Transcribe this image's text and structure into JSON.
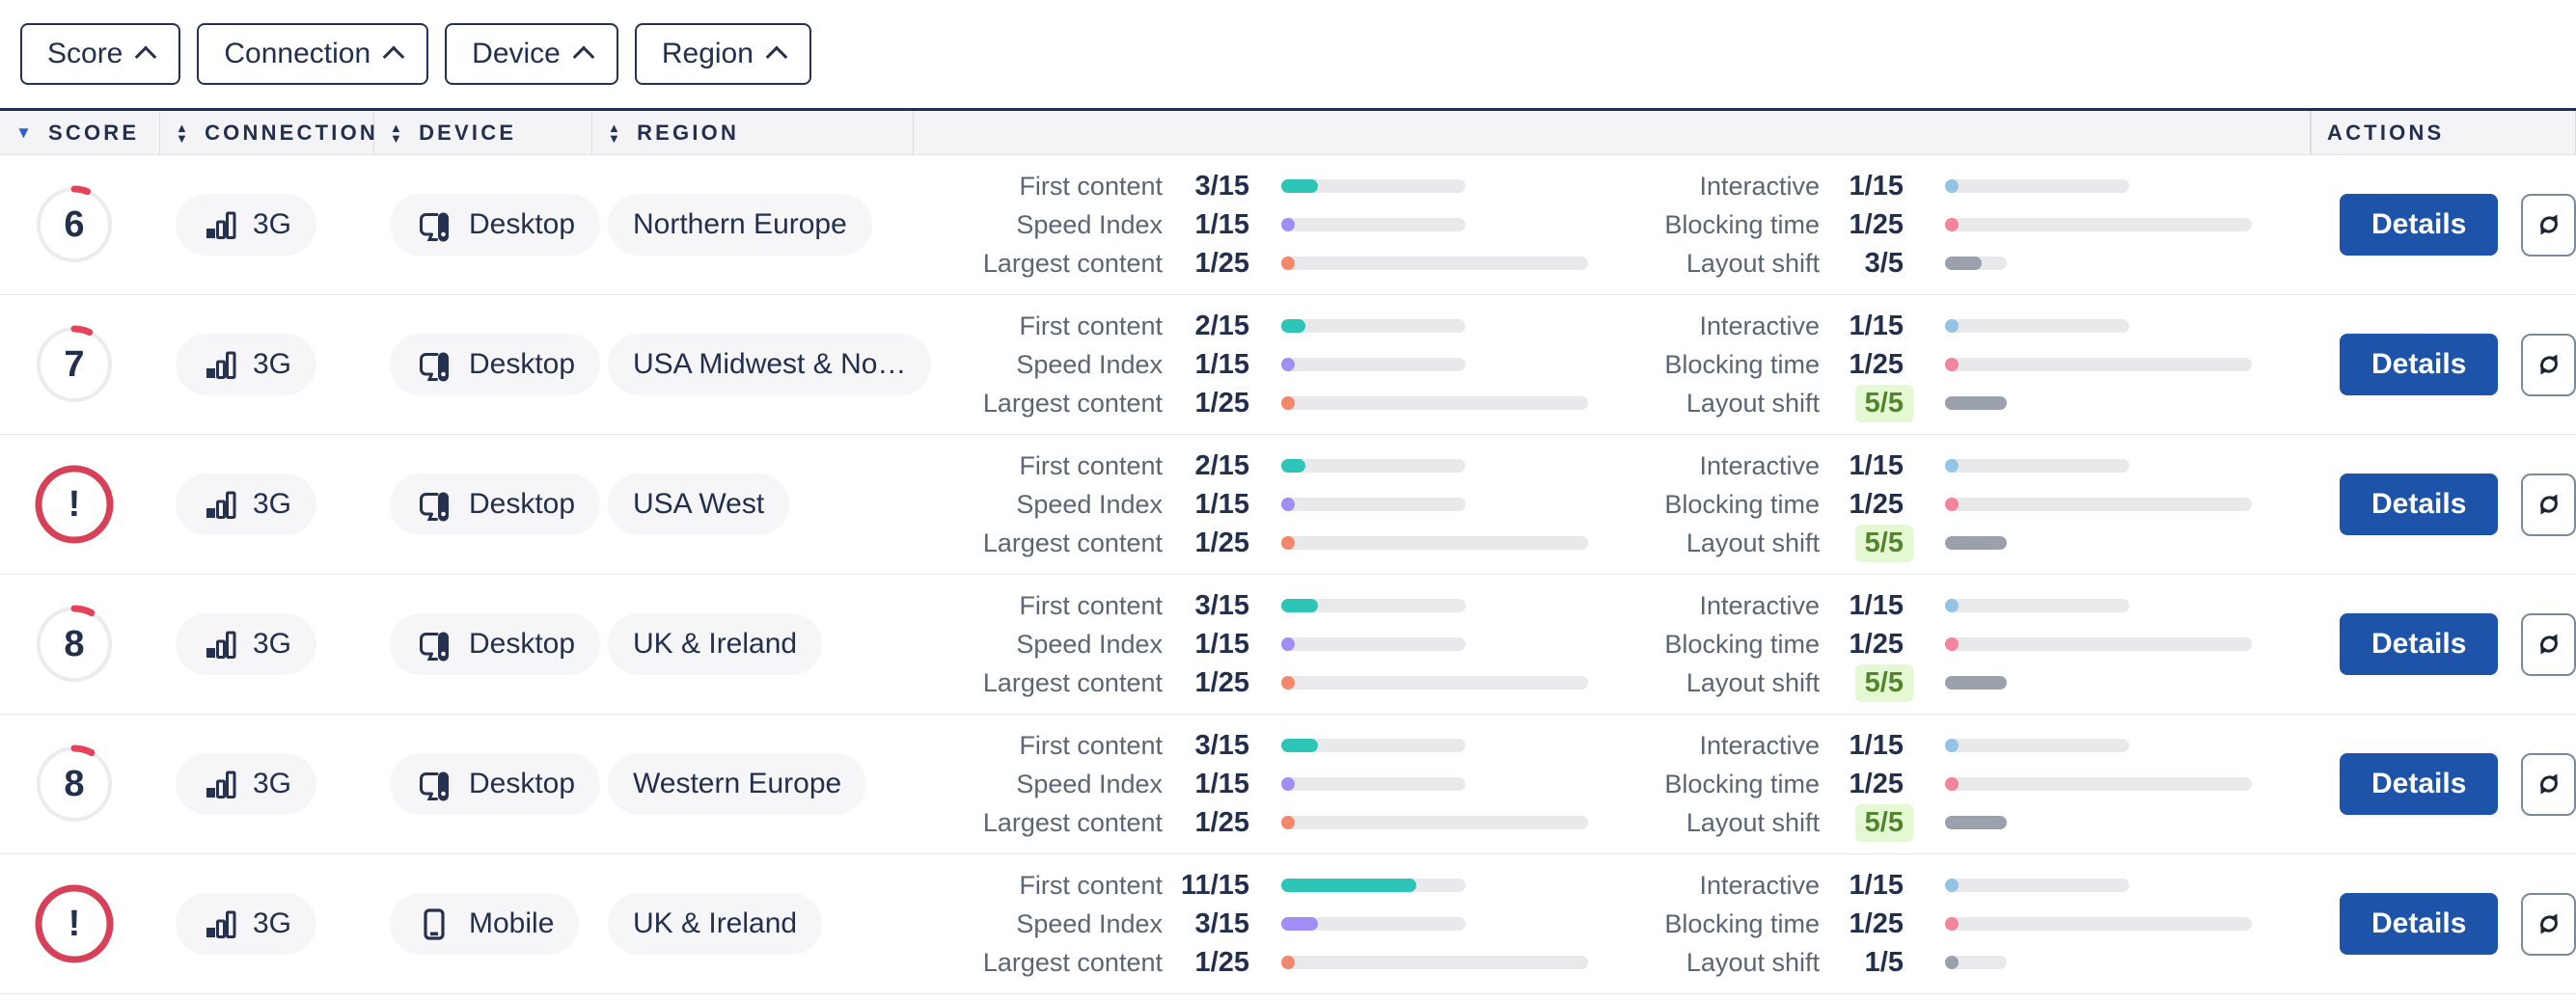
{
  "filters": [
    {
      "label": "Score"
    },
    {
      "label": "Connection"
    },
    {
      "label": "Device"
    },
    {
      "label": "Region"
    }
  ],
  "header": {
    "columns": [
      {
        "label": "SCORE",
        "sort": "descending"
      },
      {
        "label": "CONNECTION",
        "sort": "both"
      },
      {
        "label": "DEVICE",
        "sort": "both"
      },
      {
        "label": "REGION",
        "sort": "both"
      }
    ],
    "actions_label": "ACTIONS"
  },
  "icons": {
    "filter_button": "chevron-up",
    "connection": "signal-bars",
    "desktop": "desktop-monitor",
    "mobile": "mobile-phone",
    "refresh": "sync-arrows",
    "sort_active": "triangle-down",
    "sort_inactive": "triangle-up-down"
  },
  "colors": {
    "accent_blue": "#1d53a8",
    "score_ring_red": "#e8415a",
    "navy_text": "#22304d",
    "label_gray": "#5b6573",
    "pill_bg": "#f6f6f8",
    "track_gray": "#e9e9ec",
    "highlight_green_bg": "#e4f8d3",
    "highlight_green_text": "#53862c",
    "sort_active_blue": "#2e5fc7"
  },
  "metric_colors": {
    "First content": "#2ec5b9",
    "Speed Index": "#a18ef4",
    "Largest content": "#f2876c",
    "Interactive": "#93c4e6",
    "Blocking time": "#f2849c",
    "Layout shift": "#9aa1ad"
  },
  "actions": {
    "details_label": "Details"
  },
  "rows": [
    {
      "score": {
        "status": "scored",
        "value": "6",
        "number": 6
      },
      "connection": "3G",
      "device": "Desktop",
      "region": "Northern Europe",
      "metrics_left": [
        {
          "label": "First content",
          "display": "3/15",
          "value": 3,
          "max": 15
        },
        {
          "label": "Speed Index",
          "display": "1/15",
          "value": 1,
          "max": 15
        },
        {
          "label": "Largest content",
          "display": "1/25",
          "value": 1,
          "max": 25
        }
      ],
      "metrics_right": [
        {
          "label": "Interactive",
          "display": "1/15",
          "value": 1,
          "max": 15
        },
        {
          "label": "Blocking time",
          "display": "1/25",
          "value": 1,
          "max": 25
        },
        {
          "label": "Layout shift",
          "display": "3/5",
          "value": 3,
          "max": 5
        }
      ]
    },
    {
      "score": {
        "status": "scored",
        "value": "7",
        "number": 7
      },
      "connection": "3G",
      "device": "Desktop",
      "region": "USA Midwest & No…",
      "metrics_left": [
        {
          "label": "First content",
          "display": "2/15",
          "value": 2,
          "max": 15
        },
        {
          "label": "Speed Index",
          "display": "1/15",
          "value": 1,
          "max": 15
        },
        {
          "label": "Largest content",
          "display": "1/25",
          "value": 1,
          "max": 25
        }
      ],
      "metrics_right": [
        {
          "label": "Interactive",
          "display": "1/15",
          "value": 1,
          "max": 15
        },
        {
          "label": "Blocking time",
          "display": "1/25",
          "value": 1,
          "max": 25
        },
        {
          "label": "Layout shift",
          "display": "5/5",
          "value": 5,
          "max": 5,
          "highlight": true
        }
      ]
    },
    {
      "score": {
        "status": "alert",
        "value": "!"
      },
      "connection": "3G",
      "device": "Desktop",
      "region": "USA West",
      "metrics_left": [
        {
          "label": "First content",
          "display": "2/15",
          "value": 2,
          "max": 15
        },
        {
          "label": "Speed Index",
          "display": "1/15",
          "value": 1,
          "max": 15
        },
        {
          "label": "Largest content",
          "display": "1/25",
          "value": 1,
          "max": 25
        }
      ],
      "metrics_right": [
        {
          "label": "Interactive",
          "display": "1/15",
          "value": 1,
          "max": 15
        },
        {
          "label": "Blocking time",
          "display": "1/25",
          "value": 1,
          "max": 25
        },
        {
          "label": "Layout shift",
          "display": "5/5",
          "value": 5,
          "max": 5,
          "highlight": true
        }
      ]
    },
    {
      "score": {
        "status": "scored",
        "value": "8",
        "number": 8
      },
      "connection": "3G",
      "device": "Desktop",
      "region": "UK & Ireland",
      "metrics_left": [
        {
          "label": "First content",
          "display": "3/15",
          "value": 3,
          "max": 15
        },
        {
          "label": "Speed Index",
          "display": "1/15",
          "value": 1,
          "max": 15
        },
        {
          "label": "Largest content",
          "display": "1/25",
          "value": 1,
          "max": 25
        }
      ],
      "metrics_right": [
        {
          "label": "Interactive",
          "display": "1/15",
          "value": 1,
          "max": 15
        },
        {
          "label": "Blocking time",
          "display": "1/25",
          "value": 1,
          "max": 25
        },
        {
          "label": "Layout shift",
          "display": "5/5",
          "value": 5,
          "max": 5,
          "highlight": true
        }
      ]
    },
    {
      "score": {
        "status": "scored",
        "value": "8",
        "number": 8
      },
      "connection": "3G",
      "device": "Desktop",
      "region": "Western Europe",
      "metrics_left": [
        {
          "label": "First content",
          "display": "3/15",
          "value": 3,
          "max": 15
        },
        {
          "label": "Speed Index",
          "display": "1/15",
          "value": 1,
          "max": 15
        },
        {
          "label": "Largest content",
          "display": "1/25",
          "value": 1,
          "max": 25
        }
      ],
      "metrics_right": [
        {
          "label": "Interactive",
          "display": "1/15",
          "value": 1,
          "max": 15
        },
        {
          "label": "Blocking time",
          "display": "1/25",
          "value": 1,
          "max": 25
        },
        {
          "label": "Layout shift",
          "display": "5/5",
          "value": 5,
          "max": 5,
          "highlight": true
        }
      ]
    },
    {
      "score": {
        "status": "alert",
        "value": "!"
      },
      "connection": "3G",
      "device": "Mobile",
      "region": "UK & Ireland",
      "metrics_left": [
        {
          "label": "First content",
          "display": "11/15",
          "value": 11,
          "max": 15
        },
        {
          "label": "Speed Index",
          "display": "3/15",
          "value": 3,
          "max": 15
        },
        {
          "label": "Largest content",
          "display": "1/25",
          "value": 1,
          "max": 25
        }
      ],
      "metrics_right": [
        {
          "label": "Interactive",
          "display": "1/15",
          "value": 1,
          "max": 15
        },
        {
          "label": "Blocking time",
          "display": "1/25",
          "value": 1,
          "max": 25
        },
        {
          "label": "Layout shift",
          "display": "1/5",
          "value": 1,
          "max": 5
        }
      ]
    }
  ]
}
